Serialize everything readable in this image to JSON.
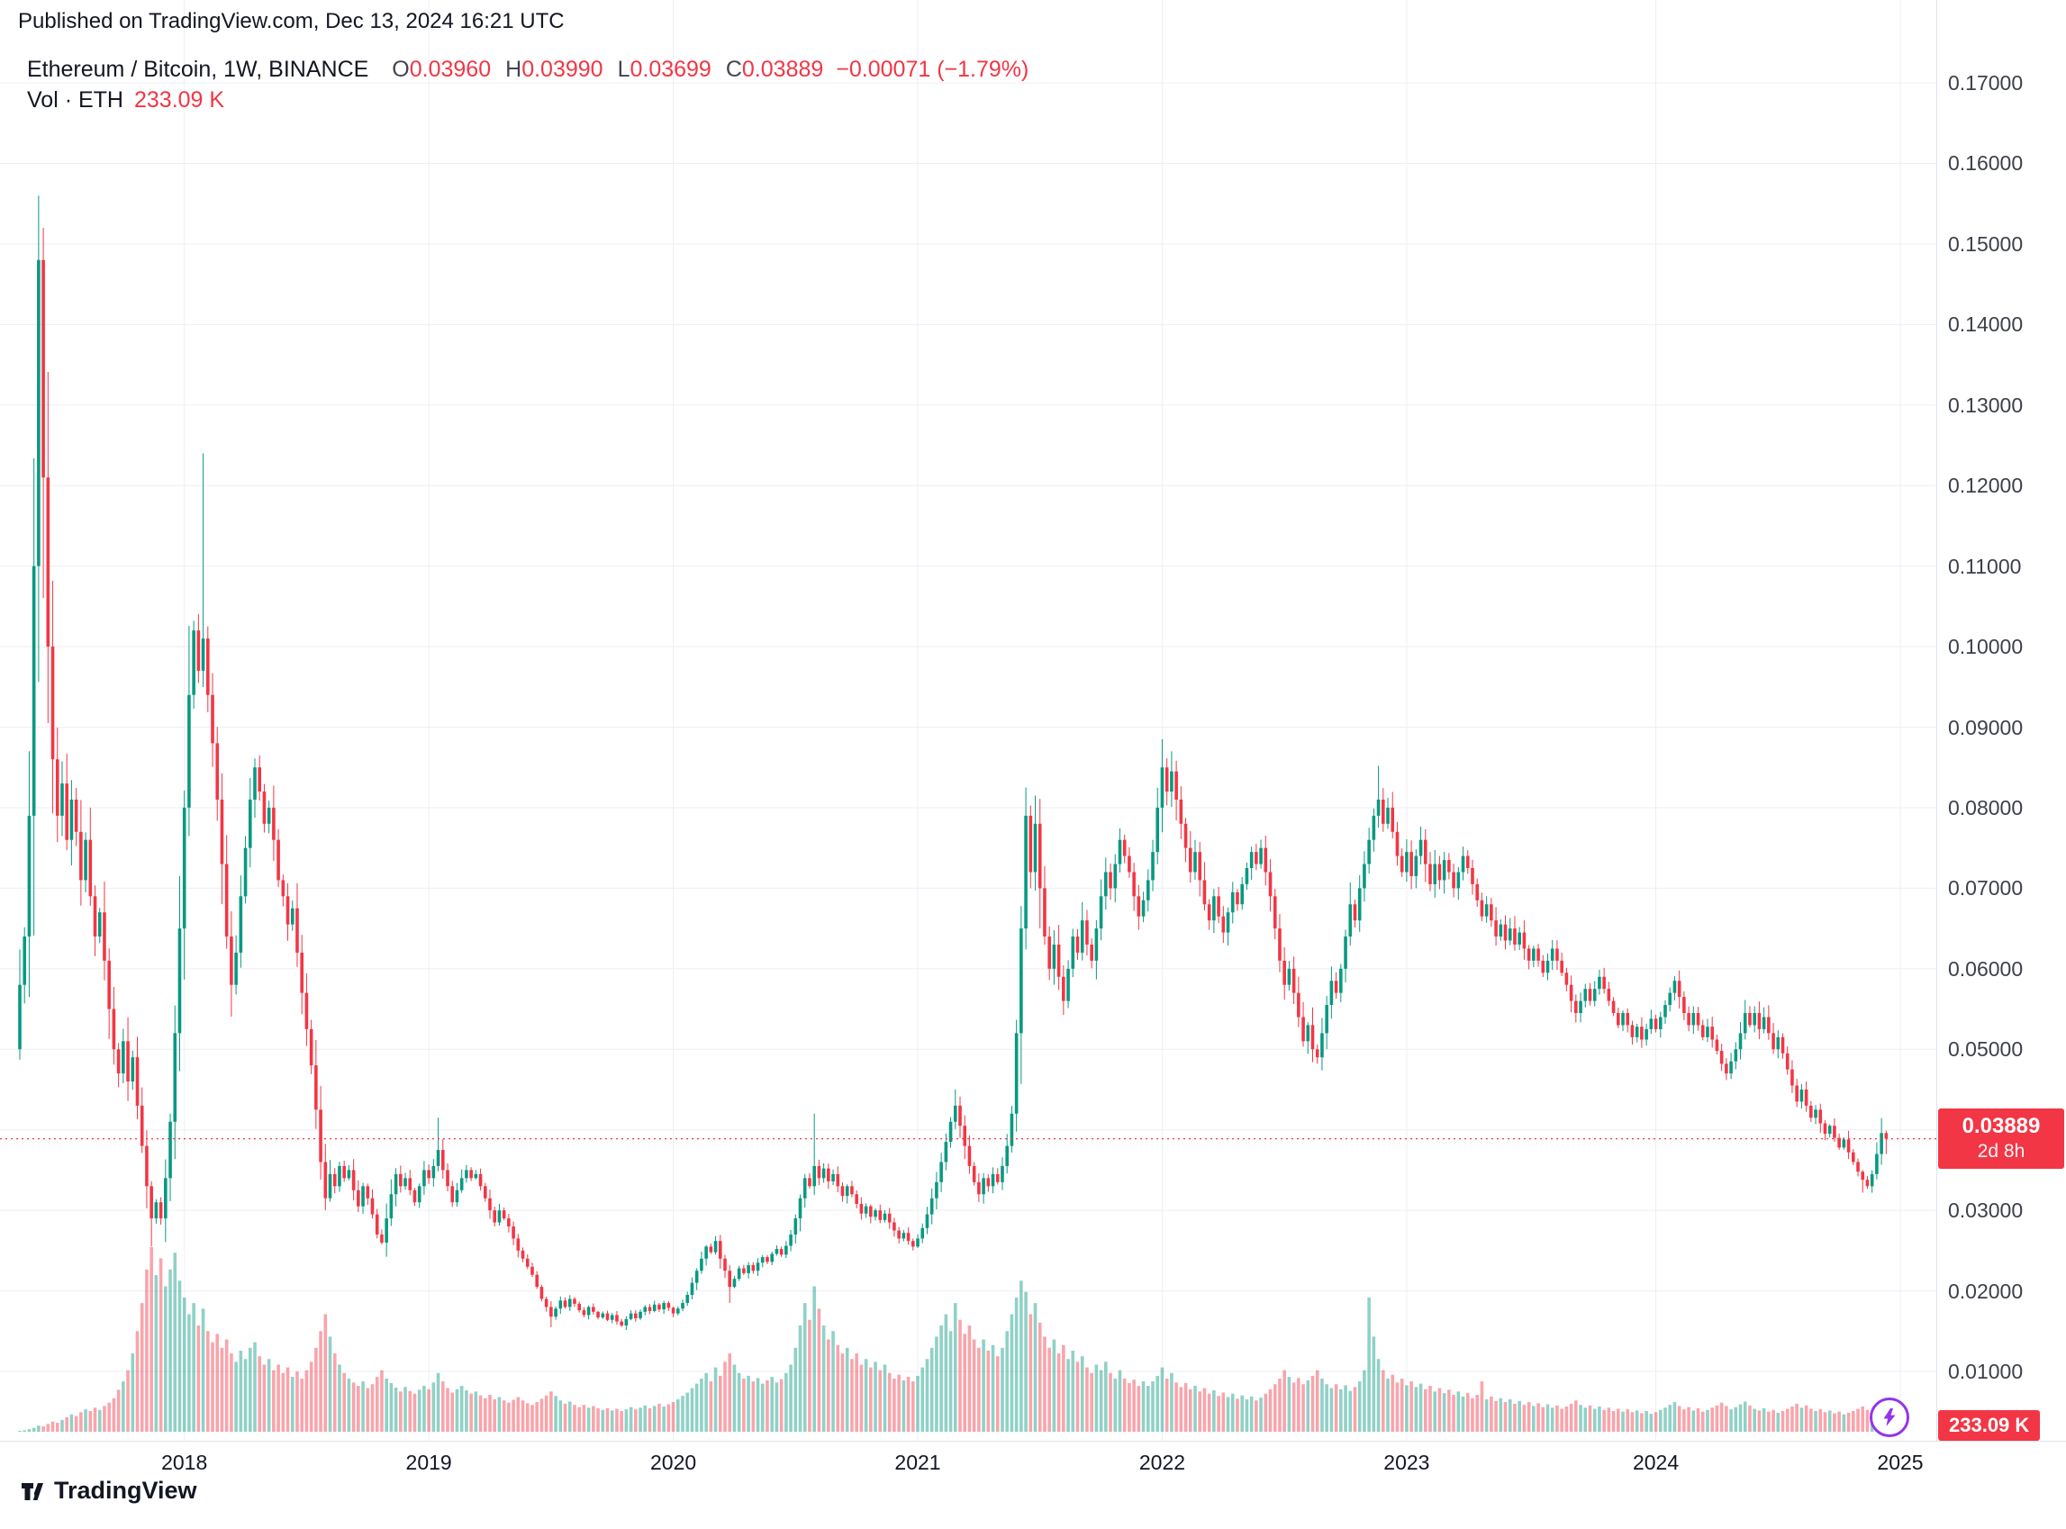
{
  "header": {
    "published_line": "Published on TradingView.com, Dec 13, 2024 16:21 UTC"
  },
  "legend": {
    "title": "Ethereum / Bitcoin, 1W, BINANCE",
    "o_label": "O",
    "o_value": "0.03960",
    "h_label": "H",
    "h_value": "0.03990",
    "l_label": "L",
    "l_value": "0.03699",
    "c_label": "C",
    "c_value": "0.03889",
    "change": "−0.00071 (−1.79%)",
    "vol_label": "Vol · ETH",
    "vol_value": "233.09 K"
  },
  "price_axis": {
    "last_price_label": "0.03889",
    "countdown": "2d 8h",
    "volume_label": "233.09 K"
  },
  "footer": {
    "brand": "TradingView"
  },
  "colors": {
    "up": "#089981",
    "down": "#f23645",
    "vol_up": "rgba(8,153,129,0.45)",
    "vol_down": "rgba(242,54,69,0.45)",
    "grid": "#eceff4",
    "axis_text": "#3c4049",
    "flash": "#9334ea"
  },
  "chart_data": {
    "type": "candlestick",
    "title": "Ethereum / Bitcoin, 1W, BINANCE",
    "symbol": "ETH/BTC",
    "exchange": "BINANCE",
    "interval": "1W",
    "legend_ohlc": {
      "open": 0.0396,
      "high": 0.0399,
      "low": 0.03699,
      "close": 0.03889,
      "change": -0.00071,
      "change_pct": -1.79
    },
    "price_line": 0.03889,
    "countdown": "2d 8h",
    "last_volume_k": 233.09,
    "first_open": 0.05,
    "y_axis": {
      "tick_values": [
        0.17,
        0.16,
        0.15,
        0.14,
        0.13,
        0.12,
        0.11,
        0.1,
        0.09,
        0.08,
        0.07,
        0.06,
        0.05,
        0.04,
        0.03,
        0.02,
        0.01
      ],
      "tick_labels": [
        "0.17000",
        "0.16000",
        "0.15000",
        "0.14000",
        "0.13000",
        "0.12000",
        "0.11000",
        "0.10000",
        "0.09000",
        "0.08000",
        "0.07000",
        "0.06000",
        "0.05000",
        "0.04000",
        "0.03000",
        "0.02000",
        "0.01000"
      ]
    },
    "x_axis": {
      "labels": [
        "2018",
        "2019",
        "2020",
        "2021",
        "2022",
        "2023",
        "2024",
        "2025"
      ],
      "tick_weeks": [
        35,
        87,
        139,
        191,
        243,
        295,
        348,
        400
      ]
    },
    "weekly_closes": [
      0.058,
      0.064,
      0.079,
      0.11,
      0.148,
      0.121,
      0.1,
      0.086,
      0.079,
      0.083,
      0.076,
      0.081,
      0.077,
      0.071,
      0.076,
      0.069,
      0.064,
      0.067,
      0.061,
      0.055,
      0.05,
      0.047,
      0.051,
      0.046,
      0.049,
      0.043,
      0.038,
      0.033,
      0.029,
      0.031,
      0.029,
      0.034,
      0.041,
      0.052,
      0.065,
      0.08,
      0.094,
      0.102,
      0.097,
      0.101,
      0.094,
      0.088,
      0.081,
      0.073,
      0.064,
      0.058,
      0.062,
      0.069,
      0.075,
      0.081,
      0.085,
      0.082,
      0.078,
      0.08,
      0.076,
      0.071,
      0.069,
      0.0655,
      0.0675,
      0.062,
      0.057,
      0.0525,
      0.048,
      0.0425,
      0.036,
      0.0315,
      0.0345,
      0.033,
      0.0355,
      0.034,
      0.035,
      0.0325,
      0.0305,
      0.033,
      0.0315,
      0.0295,
      0.027,
      0.026,
      0.029,
      0.032,
      0.0345,
      0.033,
      0.034,
      0.0325,
      0.031,
      0.033,
      0.035,
      0.034,
      0.0355,
      0.0375,
      0.035,
      0.033,
      0.031,
      0.0325,
      0.034,
      0.035,
      0.034,
      0.0345,
      0.033,
      0.0315,
      0.03,
      0.0285,
      0.03,
      0.029,
      0.028,
      0.0265,
      0.025,
      0.024,
      0.023,
      0.022,
      0.0205,
      0.019,
      0.018,
      0.0168,
      0.0178,
      0.0188,
      0.018,
      0.019,
      0.0184,
      0.0176,
      0.017,
      0.018,
      0.0174,
      0.0167,
      0.0172,
      0.0164,
      0.017,
      0.0162,
      0.0157,
      0.0165,
      0.0172,
      0.0166,
      0.0174,
      0.018,
      0.0175,
      0.0183,
      0.0177,
      0.0185,
      0.0179,
      0.0172,
      0.0178,
      0.0185,
      0.0195,
      0.021,
      0.0225,
      0.024,
      0.0255,
      0.0248,
      0.0262,
      0.024,
      0.0225,
      0.0205,
      0.0215,
      0.0228,
      0.0222,
      0.0232,
      0.0225,
      0.0235,
      0.0242,
      0.0236,
      0.0246,
      0.0252,
      0.0245,
      0.0256,
      0.027,
      0.029,
      0.0315,
      0.034,
      0.033,
      0.0355,
      0.034,
      0.0352,
      0.0336,
      0.0345,
      0.033,
      0.0318,
      0.033,
      0.032,
      0.0308,
      0.0296,
      0.0305,
      0.0292,
      0.03,
      0.0288,
      0.0296,
      0.0285,
      0.0275,
      0.0265,
      0.0272,
      0.0262,
      0.0255,
      0.0265,
      0.0278,
      0.0295,
      0.0315,
      0.0335,
      0.036,
      0.0385,
      0.041,
      0.043,
      0.0405,
      0.038,
      0.0355,
      0.0335,
      0.032,
      0.034,
      0.033,
      0.0345,
      0.0335,
      0.0355,
      0.038,
      0.042,
      0.052,
      0.065,
      0.079,
      0.072,
      0.078,
      0.07,
      0.064,
      0.06,
      0.063,
      0.059,
      0.056,
      0.06,
      0.064,
      0.062,
      0.066,
      0.063,
      0.061,
      0.065,
      0.069,
      0.072,
      0.07,
      0.073,
      0.076,
      0.074,
      0.072,
      0.069,
      0.0665,
      0.0685,
      0.071,
      0.0745,
      0.08,
      0.085,
      0.082,
      0.0845,
      0.081,
      0.078,
      0.075,
      0.072,
      0.0745,
      0.071,
      0.068,
      0.066,
      0.069,
      0.0665,
      0.0645,
      0.067,
      0.0695,
      0.068,
      0.0705,
      0.0725,
      0.0745,
      0.073,
      0.075,
      0.072,
      0.069,
      0.065,
      0.061,
      0.058,
      0.06,
      0.057,
      0.054,
      0.051,
      0.053,
      0.05,
      0.049,
      0.052,
      0.0555,
      0.0585,
      0.057,
      0.06,
      0.064,
      0.068,
      0.066,
      0.07,
      0.073,
      0.076,
      0.079,
      0.081,
      0.078,
      0.08,
      0.077,
      0.074,
      0.072,
      0.0745,
      0.0715,
      0.074,
      0.076,
      0.073,
      0.0705,
      0.073,
      0.071,
      0.0735,
      0.072,
      0.07,
      0.072,
      0.074,
      0.0725,
      0.0705,
      0.0685,
      0.0665,
      0.068,
      0.066,
      0.064,
      0.0655,
      0.0635,
      0.065,
      0.063,
      0.0645,
      0.0625,
      0.061,
      0.0625,
      0.061,
      0.0595,
      0.061,
      0.0625,
      0.061,
      0.0595,
      0.058,
      0.056,
      0.0545,
      0.056,
      0.0575,
      0.056,
      0.0575,
      0.059,
      0.0575,
      0.056,
      0.0545,
      0.053,
      0.0545,
      0.053,
      0.0515,
      0.0528,
      0.0512,
      0.0525,
      0.0538,
      0.0525,
      0.054,
      0.0555,
      0.057,
      0.0585,
      0.0565,
      0.0545,
      0.053,
      0.0545,
      0.053,
      0.0515,
      0.0528,
      0.0512,
      0.0498,
      0.0482,
      0.047,
      0.0485,
      0.05,
      0.052,
      0.0545,
      0.053,
      0.0545,
      0.0525,
      0.054,
      0.052,
      0.05,
      0.0515,
      0.0495,
      0.0475,
      0.0455,
      0.0435,
      0.045,
      0.043,
      0.0415,
      0.0425,
      0.0408,
      0.0395,
      0.0405,
      0.039,
      0.0378,
      0.0388,
      0.0372,
      0.036,
      0.0348,
      0.0338,
      0.033,
      0.0345,
      0.037,
      0.0396,
      0.03889
    ],
    "weekly_volumes_k": [
      15,
      25,
      45,
      70,
      110,
      95,
      140,
      180,
      160,
      210,
      260,
      310,
      280,
      350,
      400,
      370,
      430,
      390,
      460,
      520,
      600,
      750,
      900,
      1100,
      1400,
      1800,
      2300,
      2900,
      3300,
      2800,
      3100,
      2600,
      2900,
      3200,
      2700,
      2400,
      2100,
      2300,
      1900,
      2200,
      1800,
      1600,
      1750,
      1500,
      1650,
      1400,
      1250,
      1450,
      1300,
      1500,
      1600,
      1350,
      1200,
      1300,
      1100,
      1200,
      1050,
      1150,
      980,
      1080,
      950,
      1100,
      1250,
      1500,
      1800,
      2100,
      1700,
      1400,
      1200,
      1050,
      950,
      880,
      820,
      900,
      780,
      850,
      980,
      1100,
      950,
      870,
      790,
      720,
      800,
      730,
      680,
      750,
      820,
      760,
      880,
      1050,
      900,
      780,
      700,
      760,
      820,
      740,
      680,
      720,
      650,
      600,
      660,
      580,
      620,
      560,
      520,
      570,
      620,
      560,
      510,
      480,
      530,
      590,
      650,
      720,
      640,
      560,
      500,
      540,
      480,
      440,
      480,
      430,
      460,
      420,
      390,
      420,
      380,
      410,
      370,
      400,
      440,
      400,
      430,
      470,
      420,
      460,
      500,
      450,
      490,
      530,
      580,
      640,
      700,
      780,
      860,
      950,
      1050,
      900,
      1150,
      1000,
      1250,
      1400,
      1200,
      1050,
      950,
      1000,
      900,
      960,
      860,
      920,
      980,
      880,
      940,
      1050,
      1200,
      1500,
      1900,
      2300,
      2000,
      2600,
      2200,
      1900,
      1650,
      1800,
      1550,
      1400,
      1500,
      1300,
      1400,
      1200,
      1300,
      1150,
      1250,
      1100,
      1200,
      1050,
      950,
      1020,
      920,
      980,
      900,
      1000,
      1150,
      1300,
      1500,
      1700,
      1900,
      2100,
      1800,
      2300,
      2000,
      1750,
      1900,
      1650,
      1500,
      1650,
      1450,
      1550,
      1350,
      1500,
      1800,
      2100,
      2400,
      2700,
      2500,
      2100,
      2300,
      1950,
      1700,
      1500,
      1650,
      1400,
      1550,
      1300,
      1450,
      1250,
      1350,
      1150,
      1050,
      1200,
      1100,
      1250,
      1050,
      950,
      1100,
      950,
      870,
      930,
      820,
      900,
      820,
      900,
      1000,
      1150,
      950,
      1050,
      880,
      800,
      870,
      760,
      820,
      720,
      780,
      680,
      740,
      640,
      700,
      620,
      680,
      590,
      650,
      580,
      630,
      560,
      610,
      680,
      760,
      850,
      950,
      1100,
      980,
      880,
      960,
      850,
      920,
      1000,
      1100,
      950,
      850,
      780,
      850,
      760,
      830,
      730,
      800,
      900,
      1100,
      2400,
      1700,
      1300,
      1100,
      950,
      1020,
      880,
      950,
      830,
      900,
      800,
      860,
      760,
      820,
      720,
      780,
      690,
      750,
      660,
      720,
      630,
      690,
      600,
      660,
      900,
      580,
      630,
      550,
      600,
      530,
      580,
      500,
      550,
      480,
      530,
      460,
      510,
      440,
      490,
      430,
      470,
      410,
      450,
      500,
      560,
      480,
      430,
      470,
      410,
      450,
      390,
      430,
      370,
      410,
      360,
      400,
      350,
      380,
      330,
      370,
      320,
      350,
      390,
      430,
      480,
      530,
      460,
      400,
      440,
      380,
      420,
      360,
      390,
      430,
      470,
      520,
      460,
      400,
      440,
      490,
      540,
      470,
      410,
      380,
      420,
      360,
      390,
      340,
      370,
      410,
      450,
      500,
      430,
      470,
      410,
      370,
      400,
      350,
      380,
      330,
      360,
      310,
      340,
      370,
      410,
      450,
      390,
      340,
      300,
      270,
      233.09
    ],
    "overrides": {
      "4": {
        "h": 0.156
      },
      "5": {
        "h": 0.152
      },
      "28": {
        "l": 0.0255
      },
      "39": {
        "h": 0.124
      },
      "89": {
        "h": 0.0415
      },
      "113": {
        "l": 0.0155
      },
      "151": {
        "l": 0.0185
      },
      "169": {
        "h": 0.042
      },
      "199": {
        "h": 0.045
      },
      "214": {
        "h": 0.0825
      },
      "216": {
        "h": 0.0815
      },
      "243": {
        "h": 0.0885
      },
      "245": {
        "h": 0.087
      },
      "276": {
        "l": 0.0482
      },
      "289": {
        "h": 0.0852
      },
      "392": {
        "l": 0.0322
      },
      "397": {
        "o": 0.0396,
        "h": 0.0399,
        "l": 0.03699,
        "c": 0.03889
      }
    }
  }
}
